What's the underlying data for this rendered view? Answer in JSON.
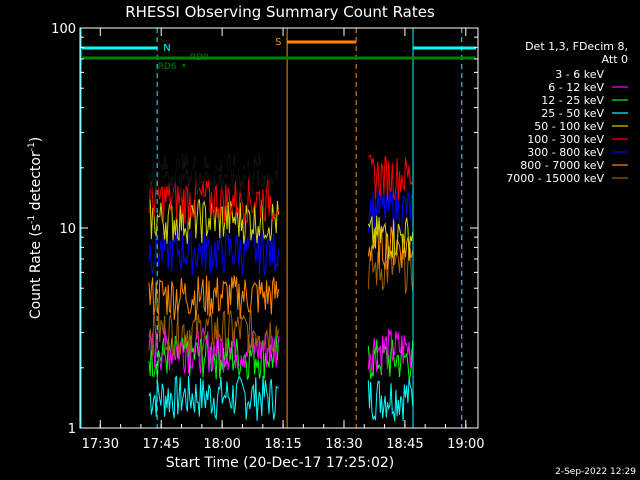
{
  "chart_data": {
    "type": "line",
    "title": "RHESSI Observing Summary Count Rates",
    "xlabel": "Start Time (20-Dec-17 17:25:02)",
    "ylabel_main": "Count Rate (s",
    "ylabel_sup1": "-1",
    "ylabel_mid": " detector",
    "ylabel_sup2": "-1",
    "ylabel_end": ")",
    "y_scale": "log",
    "ylim": [
      1,
      100
    ],
    "xlim_minutes": [
      0,
      98
    ],
    "x_tick_labels": [
      "17:30",
      "17:45",
      "18:00",
      "18:15",
      "18:30",
      "18:45",
      "19:00"
    ],
    "y_tick_labels": [
      "1",
      "10",
      "100"
    ],
    "legend": {
      "placement": "right",
      "header": [
        "Det 1,3, FDecim 8,",
        "Att 0"
      ],
      "entries": [
        {
          "label": "3 - 6 keV",
          "color": "#000000"
        },
        {
          "label": "6 - 12 keV",
          "color": "#ff00ff"
        },
        {
          "label": "12 - 25 keV",
          "color": "#00ff00"
        },
        {
          "label": "25 - 50 keV",
          "color": "#00ffff"
        },
        {
          "label": "50 - 100 keV",
          "color": "#d4d400"
        },
        {
          "label": "100 - 300 keV",
          "color": "#ff0000"
        },
        {
          "label": "300 - 800 keV",
          "color": "#0000ff"
        },
        {
          "label": "800 - 7000 keV",
          "color": "#ff8800"
        },
        {
          "label": "7000 - 15000 keV",
          "color": "#a06000"
        }
      ]
    },
    "segments": [
      {
        "start": "17:42",
        "end": "18:14"
      },
      {
        "start": "18:36",
        "end": "18:47"
      }
    ],
    "series_levels": [
      {
        "name": "3 - 6 keV",
        "seg1": 19.5,
        "seg2": null
      },
      {
        "name": "6 - 12 keV",
        "seg1": 2.6,
        "seg2": 2.6
      },
      {
        "name": "12 - 25 keV",
        "seg1": 2.4,
        "seg2": 2.3
      },
      {
        "name": "25 - 50 keV",
        "seg1": 1.5,
        "seg2": 1.5
      },
      {
        "name": "50 - 100 keV",
        "seg1": 11.5,
        "seg2": 9.5
      },
      {
        "name": "100 - 300 keV",
        "seg1": 14.5,
        "seg2": 19
      },
      {
        "name": "300 - 800 keV",
        "seg1": 8,
        "seg2": 13
      },
      {
        "name": "800 - 7000 keV",
        "seg1": 4.8,
        "seg2": 8.5
      },
      {
        "name": "7000 - 15000 keV",
        "seg1": 3.2,
        "seg2": 6.5
      }
    ],
    "annotations": {
      "night_label": "N",
      "saa_label": "S",
      "rd0_label": "RD0",
      "rd6_label": "RD6"
    },
    "timestamp": "2-Sep-2022 12:29"
  }
}
